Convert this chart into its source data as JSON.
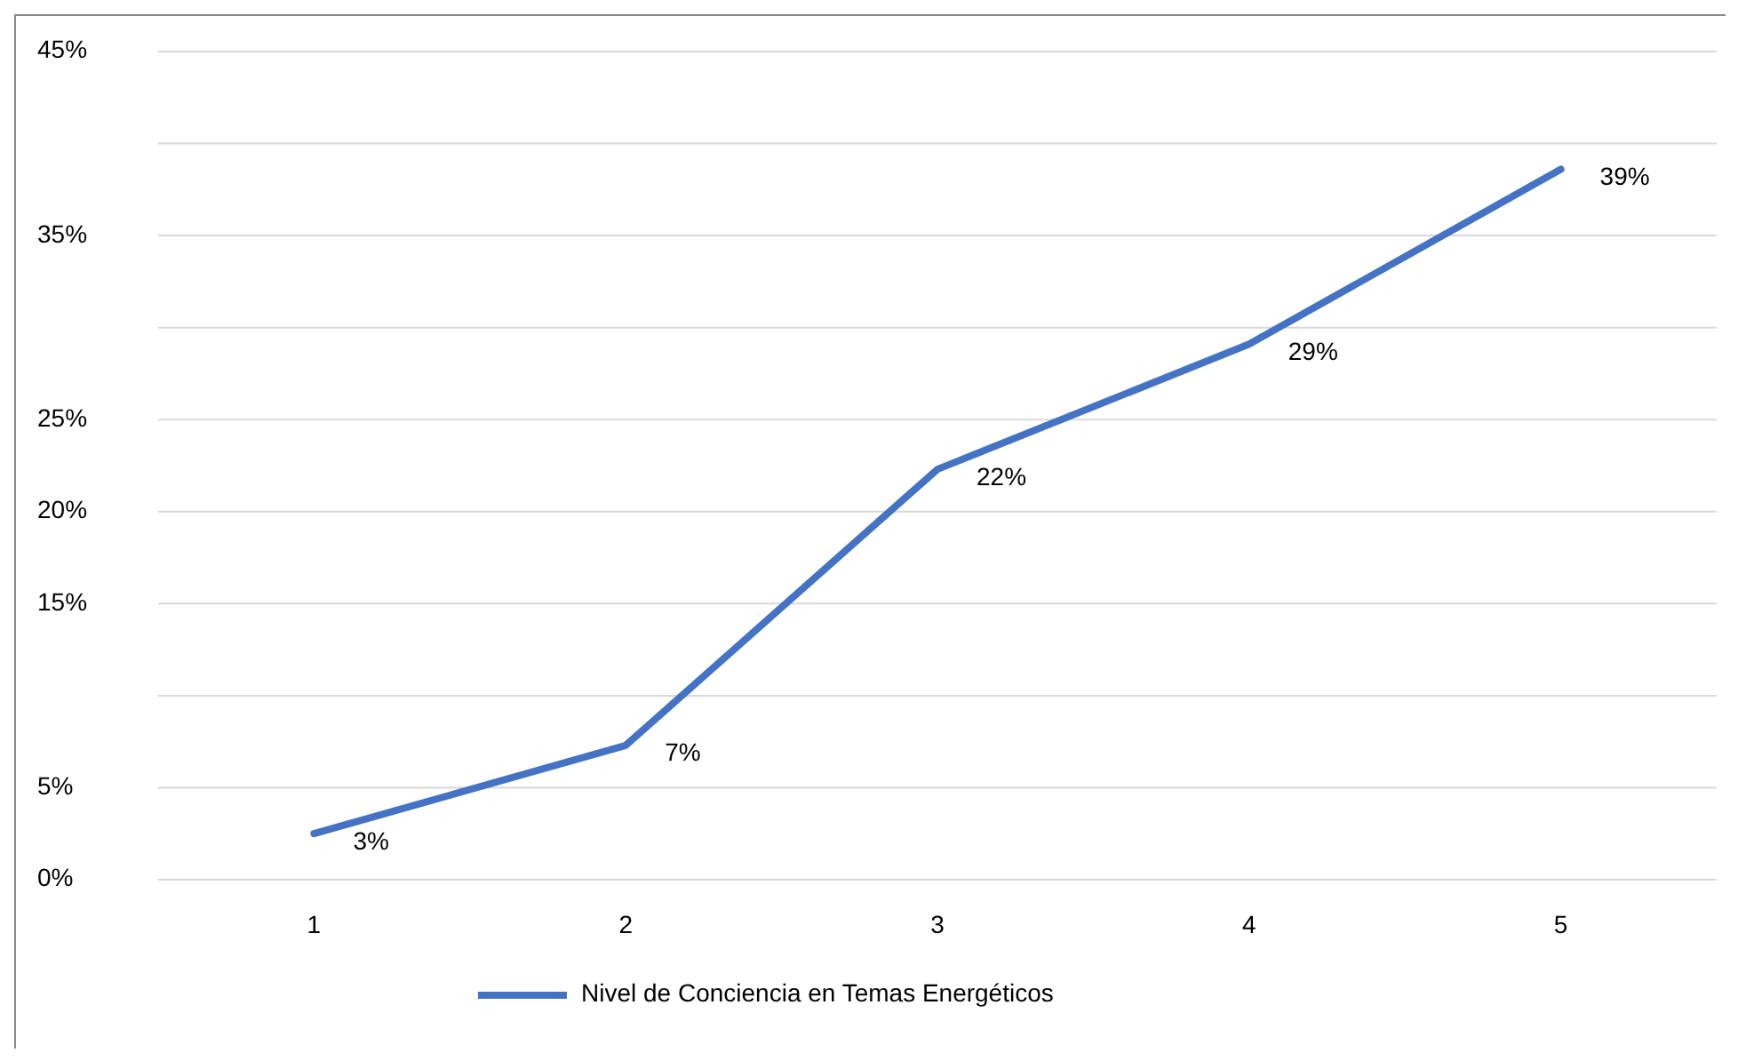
{
  "chart_data": {
    "type": "line",
    "categories": [
      "1",
      "2",
      "3",
      "4",
      "5"
    ],
    "series": [
      {
        "name": "Nivel de Conciencia en Temas Energéticos",
        "color": "#4472c4",
        "values": [
          2.5,
          7.3,
          22.3,
          29.1,
          38.6
        ],
        "value_labels": [
          "3%",
          "7%",
          "22%",
          "29%",
          "39%"
        ]
      }
    ],
    "ylim": [
      0,
      45
    ],
    "yticks": [
      {
        "value": 0,
        "label": "0%"
      },
      {
        "value": 5,
        "label": "5%"
      },
      {
        "value": 10,
        "label": null
      },
      {
        "value": 15,
        "label": "15%"
      },
      {
        "value": 20,
        "label": "20%"
      },
      {
        "value": 25,
        "label": "25%"
      },
      {
        "value": 30,
        "label": null
      },
      {
        "value": 35,
        "label": "35%"
      },
      {
        "value": 40,
        "label": null
      },
      {
        "value": 45,
        "label": "45%"
      }
    ],
    "grid": "y",
    "legend": "bottom",
    "marker": "none",
    "line_style": "solid"
  }
}
